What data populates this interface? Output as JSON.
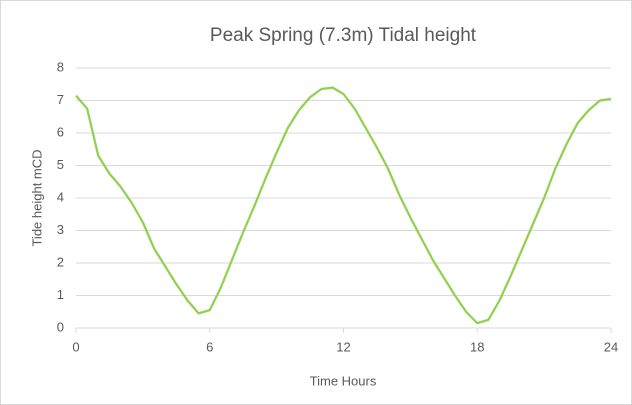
{
  "chart_data": {
    "type": "line",
    "title": "Peak Spring (7.3m) Tidal height",
    "x_label": "Time Hours",
    "y_label": "Tide height mCD",
    "x": [
      0,
      0.5,
      1,
      1.5,
      2,
      2.5,
      3,
      3.5,
      4,
      4.5,
      5,
      5.5,
      6,
      6.5,
      7,
      7.5,
      8,
      8.5,
      9,
      9.5,
      10,
      10.5,
      11,
      11.5,
      12,
      12.5,
      13,
      13.5,
      14,
      14.5,
      15,
      15.5,
      16,
      16.5,
      17,
      17.5,
      18,
      18.5,
      19,
      19.5,
      20,
      20.5,
      21,
      21.5,
      22,
      22.5,
      23,
      23.5,
      24
    ],
    "series": [
      {
        "name": "Tide height",
        "color": "#92d050",
        "values": [
          7.15,
          6.75,
          5.3,
          4.75,
          4.35,
          3.85,
          3.25,
          2.45,
          1.9,
          1.35,
          0.85,
          0.45,
          0.55,
          1.25,
          2.1,
          2.95,
          3.75,
          4.6,
          5.4,
          6.15,
          6.7,
          7.1,
          7.35,
          7.4,
          7.2,
          6.75,
          6.15,
          5.55,
          4.9,
          4.1,
          3.4,
          2.75,
          2.1,
          1.55,
          1.0,
          0.5,
          0.15,
          0.25,
          0.85,
          1.6,
          2.4,
          3.2,
          4.0,
          4.9,
          5.65,
          6.3,
          6.7,
          7.0,
          7.05
        ]
      }
    ],
    "xlim": [
      0,
      24
    ],
    "xticks": [
      0,
      6,
      12,
      18,
      24
    ],
    "ylim": [
      0,
      8
    ],
    "yticks": [
      0,
      1,
      2,
      3,
      4,
      5,
      6,
      7,
      8
    ],
    "grid": true
  }
}
